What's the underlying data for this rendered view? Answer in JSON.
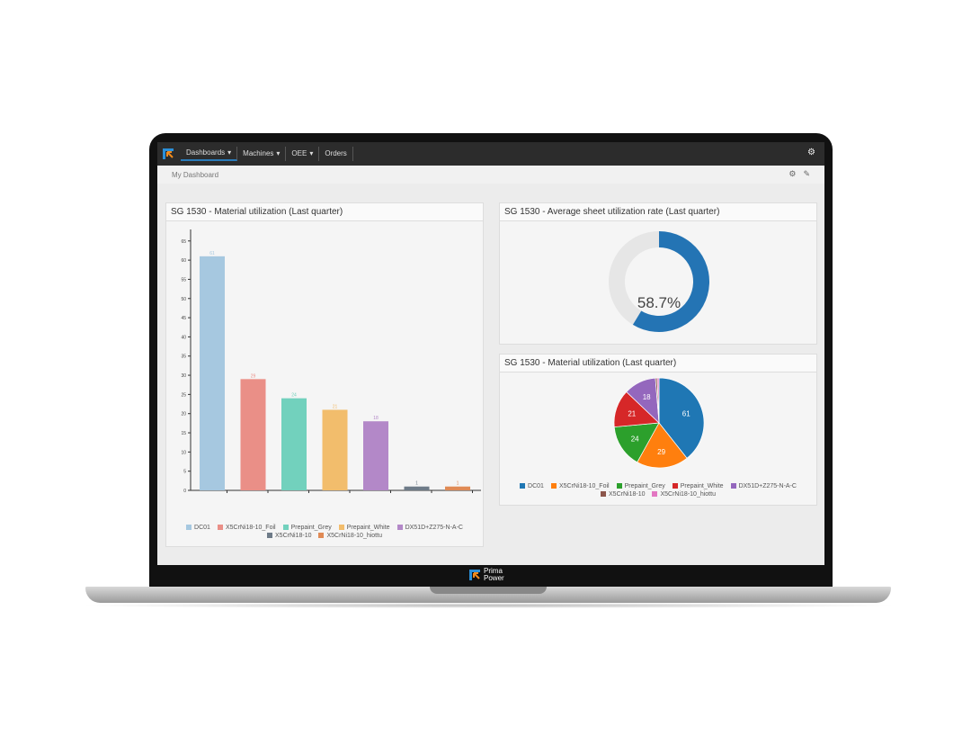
{
  "nav": {
    "items": [
      {
        "label": "Dashboards",
        "dropdown": true,
        "active": true
      },
      {
        "label": "Machines",
        "dropdown": true
      },
      {
        "label": "OEE",
        "dropdown": true
      },
      {
        "label": "Orders",
        "dropdown": false
      }
    ]
  },
  "breadcrumb": "My Dashboard",
  "brand": {
    "line1": "Prima",
    "line2": "Power"
  },
  "panels": {
    "bar": {
      "title": "SG 1530 - Material utilization (Last quarter)"
    },
    "donut": {
      "title": "SG 1530 - Average sheet utilization rate (Last quarter)",
      "label": "58.7%"
    },
    "pie": {
      "title": "SG 1530 - Material utilization (Last quarter)"
    }
  },
  "chart_data": [
    {
      "type": "bar",
      "categories": [
        "DC01",
        "X5CrNi18-10_Foil",
        "Prepaint_Grey",
        "Prepaint_White",
        "DX51D+Z275-N-A-C",
        "X5CrNi18-10",
        "X5CrNi18-10_hiottu"
      ],
      "values": [
        61,
        29,
        24,
        21,
        18,
        1,
        1
      ],
      "colors": [
        "#a6c8e0",
        "#ea8f87",
        "#72d1bd",
        "#f2bd6c",
        "#b388c8",
        "#6e7b88",
        "#e08a55"
      ],
      "ylim": [
        0,
        68
      ],
      "yticks": [
        0,
        5,
        10,
        15,
        20,
        25,
        30,
        35,
        40,
        45,
        50,
        55,
        60,
        65
      ],
      "legend": "bottom"
    },
    {
      "type": "pie",
      "subtype": "donut",
      "value_percent": 58.7,
      "colors": [
        "#2474b4",
        "#e6e6e6"
      ]
    },
    {
      "type": "pie",
      "categories": [
        "DC01",
        "X5CrNi18-10_Foil",
        "Prepaint_Grey",
        "Prepaint_White",
        "DX51D+Z275-N-A-C",
        "X5CrNi18-10",
        "X5CrNi18-10_hiottu"
      ],
      "values": [
        61,
        29,
        24,
        21,
        18,
        1,
        1
      ],
      "colors": [
        "#1f77b4",
        "#ff7f0e",
        "#2ca02c",
        "#d62728",
        "#9467bd",
        "#8c564b",
        "#e377c2"
      ],
      "legend": "bottom"
    }
  ]
}
